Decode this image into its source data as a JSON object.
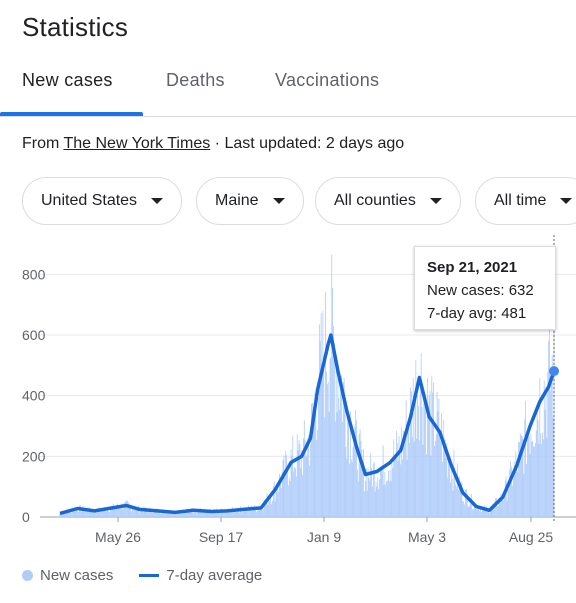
{
  "page_title": "Statistics",
  "tabs": [
    {
      "label": "New cases",
      "active": true
    },
    {
      "label": "Deaths",
      "active": false
    },
    {
      "label": "Vaccinations",
      "active": false
    }
  ],
  "source": {
    "prefix": "From",
    "link_text": "The New York Times",
    "separator": "·",
    "updated": "Last updated: 2 days ago"
  },
  "filters": [
    {
      "label": "United States"
    },
    {
      "label": "Maine"
    },
    {
      "label": "All counties"
    },
    {
      "label": "All time"
    }
  ],
  "tooltip": {
    "date": "Sep 21, 2021",
    "new_cases_label": "New cases:",
    "new_cases_value": "632",
    "avg_label": "7-day avg:",
    "avg_value": "481"
  },
  "legend": {
    "bars": "New cases",
    "line": "7-day average"
  },
  "colors": {
    "bar": "#aecbfa",
    "line": "#1967d2",
    "accent": "#1a73e8",
    "grid": "#e8eaed"
  },
  "chart_data": {
    "type": "bar",
    "title": "",
    "xlabel": "",
    "ylabel": "",
    "ylim": [
      0,
      900
    ],
    "yticks": [
      0,
      200,
      400,
      600,
      800
    ],
    "grid": true,
    "legend_position": "bottom",
    "x_tick_labels": [
      "May 26",
      "Sep 17",
      "Jan 9",
      "May 3",
      "Aug 25"
    ],
    "x_start": "2020-03-12",
    "x_end": "2021-09-21",
    "series": [
      {
        "name": "7-day average",
        "type": "line",
        "points": [
          [
            "2020-03-12",
            12
          ],
          [
            "2020-04-01",
            28
          ],
          [
            "2020-04-20",
            20
          ],
          [
            "2020-05-10",
            30
          ],
          [
            "2020-05-26",
            38
          ],
          [
            "2020-06-10",
            25
          ],
          [
            "2020-06-30",
            20
          ],
          [
            "2020-07-20",
            15
          ],
          [
            "2020-08-10",
            22
          ],
          [
            "2020-08-30",
            18
          ],
          [
            "2020-09-17",
            20
          ],
          [
            "2020-10-05",
            25
          ],
          [
            "2020-10-25",
            30
          ],
          [
            "2020-11-10",
            90
          ],
          [
            "2020-11-28",
            180
          ],
          [
            "2020-12-10",
            200
          ],
          [
            "2020-12-20",
            260
          ],
          [
            "2020-12-28",
            420
          ],
          [
            "2021-01-09",
            570
          ],
          [
            "2021-01-12",
            600
          ],
          [
            "2021-01-20",
            480
          ],
          [
            "2021-01-30",
            350
          ],
          [
            "2021-02-10",
            230
          ],
          [
            "2021-02-20",
            140
          ],
          [
            "2021-03-05",
            150
          ],
          [
            "2021-03-20",
            180
          ],
          [
            "2021-04-01",
            220
          ],
          [
            "2021-04-12",
            330
          ],
          [
            "2021-04-22",
            460
          ],
          [
            "2021-05-03",
            330
          ],
          [
            "2021-05-15",
            280
          ],
          [
            "2021-05-28",
            170
          ],
          [
            "2021-06-10",
            80
          ],
          [
            "2021-06-25",
            35
          ],
          [
            "2021-07-10",
            22
          ],
          [
            "2021-07-25",
            65
          ],
          [
            "2021-08-10",
            170
          ],
          [
            "2021-08-25",
            300
          ],
          [
            "2021-09-05",
            380
          ],
          [
            "2021-09-15",
            430
          ],
          [
            "2021-09-21",
            481
          ]
        ]
      },
      {
        "name": "New cases",
        "type": "bar",
        "note": "daily values fluctuate around the 7-day average; peaks near 900 in early Jan 2021 and 632 on Sep 21, 2021",
        "selected_value": 632
      }
    ]
  }
}
